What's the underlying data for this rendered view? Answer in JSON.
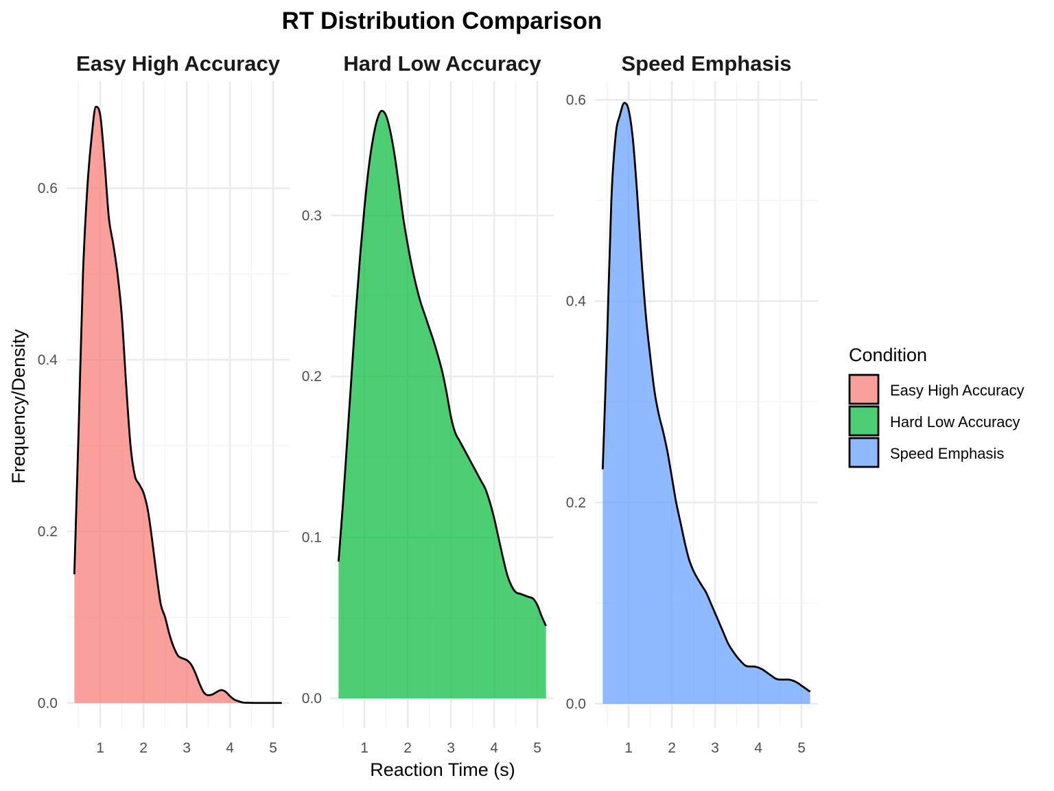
{
  "chart_data": {
    "type": "area",
    "title": "RT Distribution Comparison",
    "xlabel": "Reaction Time (s)",
    "ylabel": "Frequency/Density",
    "x_ticks": [
      1,
      2,
      3,
      4,
      5
    ],
    "xlim": [
      0.22,
      5.38
    ],
    "legend": {
      "title": "Condition",
      "placement": "right",
      "entries": [
        {
          "label": "Easy High Accuracy",
          "color": "#F8766D"
        },
        {
          "label": "Hard Low Accuracy",
          "color": "#00BA38"
        },
        {
          "label": "Speed Emphasis",
          "color": "#619CFF"
        }
      ]
    },
    "panels": [
      {
        "name": "Easy High Accuracy",
        "color": "#F8766D",
        "ylim": [
          -0.029,
          0.725
        ],
        "y_ticks": [
          0.0,
          0.2,
          0.4,
          0.6
        ],
        "y_tick_labels": [
          "0.0",
          "0.2",
          "0.4",
          "0.6"
        ],
        "x": [
          0.4,
          0.5,
          0.6,
          0.7,
          0.8,
          0.9,
          1.0,
          1.1,
          1.2,
          1.3,
          1.4,
          1.5,
          1.6,
          1.7,
          1.8,
          1.9,
          2.0,
          2.1,
          2.2,
          2.3,
          2.4,
          2.5,
          2.6,
          2.7,
          2.8,
          2.9,
          3.0,
          3.1,
          3.2,
          3.3,
          3.4,
          3.5,
          3.6,
          3.7,
          3.8,
          3.9,
          4.0,
          4.1,
          4.2,
          4.3,
          4.4,
          4.5,
          4.6,
          4.7,
          4.8,
          4.9,
          5.0,
          5.1,
          5.2
        ],
        "density": [
          0.15,
          0.32,
          0.5,
          0.6,
          0.66,
          0.695,
          0.685,
          0.63,
          0.565,
          0.535,
          0.5,
          0.45,
          0.37,
          0.3,
          0.265,
          0.255,
          0.245,
          0.225,
          0.19,
          0.15,
          0.115,
          0.1,
          0.08,
          0.065,
          0.055,
          0.052,
          0.05,
          0.045,
          0.035,
          0.022,
          0.012,
          0.009,
          0.01,
          0.013,
          0.015,
          0.013,
          0.008,
          0.004,
          0.002,
          0.0005,
          0.0002,
          0.0001,
          0.0,
          0.0,
          0.0,
          0.0,
          0.0,
          0.0,
          0.0
        ]
      },
      {
        "name": "Hard Low Accuracy",
        "color": "#00BA38",
        "ylim": [
          -0.0183,
          0.3835
        ],
        "y_ticks": [
          0.0,
          0.1,
          0.2,
          0.3
        ],
        "y_tick_labels": [
          "0.0",
          "0.1",
          "0.2",
          "0.3"
        ],
        "x": [
          0.4,
          0.5,
          0.6,
          0.7,
          0.8,
          0.9,
          1.0,
          1.1,
          1.2,
          1.3,
          1.4,
          1.5,
          1.6,
          1.7,
          1.8,
          1.9,
          2.0,
          2.1,
          2.2,
          2.3,
          2.4,
          2.5,
          2.6,
          2.7,
          2.8,
          2.9,
          3.0,
          3.1,
          3.2,
          3.3,
          3.4,
          3.5,
          3.6,
          3.7,
          3.8,
          3.9,
          4.0,
          4.1,
          4.2,
          4.3,
          4.4,
          4.5,
          4.6,
          4.7,
          4.8,
          4.9,
          5.0,
          5.1,
          5.2
        ],
        "density": [
          0.085,
          0.12,
          0.16,
          0.2,
          0.24,
          0.275,
          0.305,
          0.33,
          0.348,
          0.36,
          0.365,
          0.362,
          0.352,
          0.337,
          0.318,
          0.298,
          0.282,
          0.268,
          0.256,
          0.246,
          0.238,
          0.23,
          0.222,
          0.213,
          0.203,
          0.19,
          0.175,
          0.165,
          0.16,
          0.155,
          0.15,
          0.145,
          0.14,
          0.135,
          0.13,
          0.122,
          0.112,
          0.1,
          0.088,
          0.077,
          0.07,
          0.066,
          0.065,
          0.064,
          0.063,
          0.062,
          0.058,
          0.051,
          0.045
        ]
      },
      {
        "name": "Speed Emphasis",
        "color": "#619CFF",
        "ylim": [
          -0.0239,
          0.6187
        ],
        "y_ticks": [
          0.0,
          0.2,
          0.4,
          0.6
        ],
        "y_tick_labels": [
          "0.0",
          "0.2",
          "0.4",
          "0.6"
        ],
        "x": [
          0.4,
          0.5,
          0.6,
          0.7,
          0.8,
          0.9,
          1.0,
          1.1,
          1.2,
          1.3,
          1.4,
          1.5,
          1.6,
          1.7,
          1.8,
          1.9,
          2.0,
          2.1,
          2.2,
          2.3,
          2.4,
          2.5,
          2.6,
          2.7,
          2.8,
          2.9,
          3.0,
          3.1,
          3.2,
          3.3,
          3.4,
          3.5,
          3.6,
          3.7,
          3.8,
          3.9,
          4.0,
          4.1,
          4.2,
          4.3,
          4.4,
          4.5,
          4.6,
          4.7,
          4.8,
          4.9,
          5.0,
          5.1,
          5.2
        ],
        "density": [
          0.233,
          0.36,
          0.5,
          0.565,
          0.585,
          0.597,
          0.59,
          0.56,
          0.505,
          0.44,
          0.385,
          0.345,
          0.31,
          0.287,
          0.27,
          0.25,
          0.225,
          0.2,
          0.18,
          0.16,
          0.143,
          0.132,
          0.124,
          0.117,
          0.11,
          0.1,
          0.09,
          0.08,
          0.07,
          0.06,
          0.053,
          0.047,
          0.042,
          0.038,
          0.037,
          0.037,
          0.036,
          0.034,
          0.031,
          0.028,
          0.025,
          0.024,
          0.024,
          0.024,
          0.023,
          0.021,
          0.018,
          0.015,
          0.012
        ]
      }
    ]
  }
}
